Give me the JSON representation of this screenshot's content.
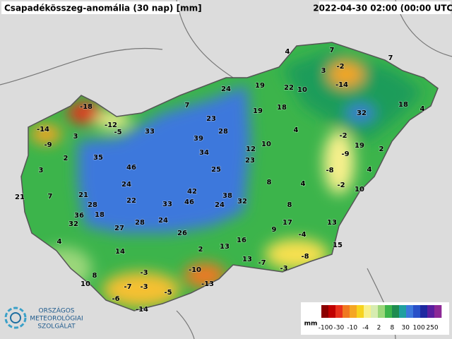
{
  "header": {
    "title": "Csapadékösszeg-anomália (30 nap) [mm]",
    "timestamp": "2022-04-30 02:00 (00:00 UTC)"
  },
  "stations": [
    4,
    7,
    7,
    3,
    -2,
    -14,
    19,
    22,
    10,
    24,
    7,
    -18,
    19,
    18,
    32,
    18,
    4,
    23,
    -14,
    -12,
    -5,
    33,
    28,
    4,
    -2,
    3,
    -9,
    39,
    12,
    10,
    19,
    2,
    2,
    35,
    34,
    23,
    -9,
    3,
    46,
    25,
    4,
    -8,
    8,
    4,
    -2,
    10,
    24,
    42,
    38,
    21,
    7,
    21,
    22,
    33,
    46,
    24,
    32,
    8,
    28,
    36,
    18,
    32,
    28,
    24,
    27,
    17,
    13,
    9,
    26,
    -4,
    4,
    16,
    15,
    2,
    13,
    14,
    -8,
    13,
    -7,
    -3,
    -10,
    8,
    -3,
    -7,
    -3,
    -5,
    -13,
    10,
    -6,
    -14
  ],
  "legend": {
    "unit": "mm",
    "labels": [
      -100,
      -30,
      -10,
      -4,
      2,
      8,
      30,
      100,
      250
    ],
    "colors": [
      "#8b0000",
      "#c00000",
      "#e8301c",
      "#f07820",
      "#f5a623",
      "#f7d31e",
      "#f7f08c",
      "#d7ecb0",
      "#9bd77a",
      "#3cb44b",
      "#1e8c50",
      "#1fa0a0",
      "#3c78dc",
      "#2850c8",
      "#1e28a0",
      "#5a1e9e",
      "#8c2896"
    ]
  },
  "logo": {
    "lines": [
      "ORSZÁGOS",
      "METEOROLÓGIAI",
      "SZOLGÁLAT"
    ]
  }
}
